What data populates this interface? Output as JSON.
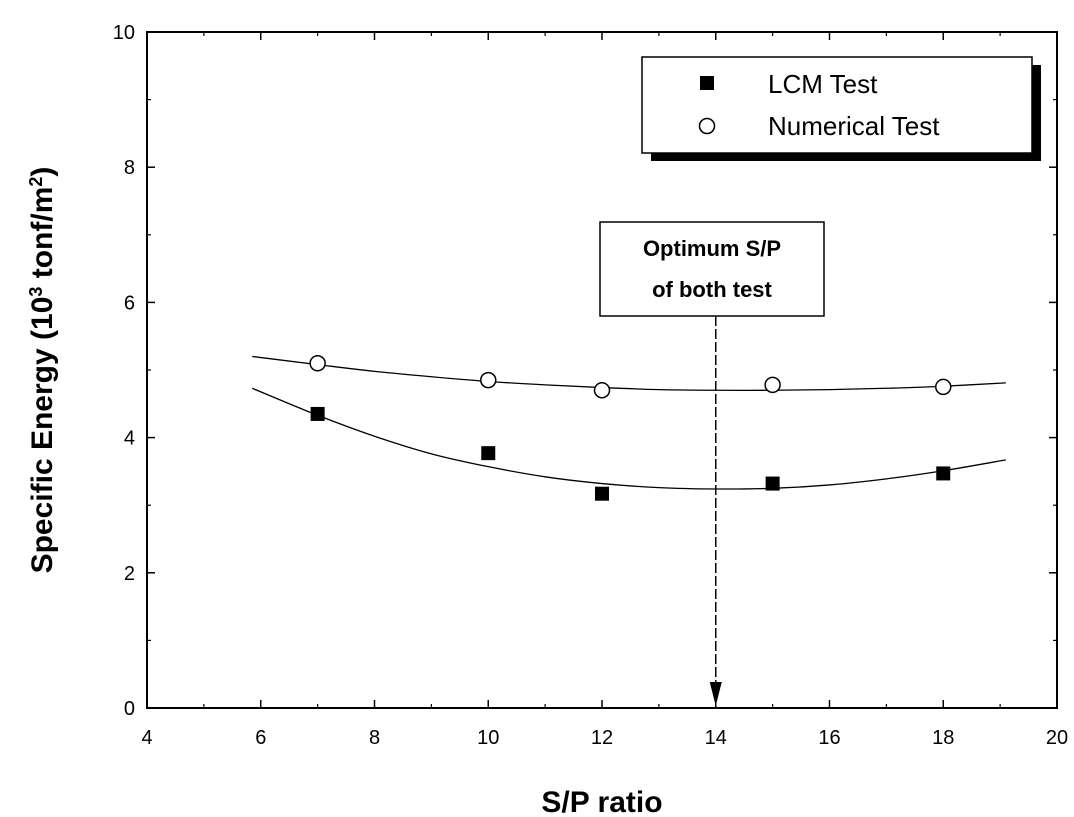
{
  "chart_data": {
    "type": "scatter",
    "xlabel": "S/P ratio",
    "ylabel": "Specific Energy (10³ tonf/m²)",
    "ylabel_parts": {
      "a": "Specific Energy (10",
      "sup1": "3",
      "b": " tonf/m",
      "sup2": "2",
      "c": ")"
    },
    "xlim": [
      4,
      20
    ],
    "ylim": [
      0,
      10
    ],
    "xticks": [
      4,
      6,
      8,
      10,
      12,
      14,
      16,
      18,
      20
    ],
    "yticks": [
      0,
      2,
      4,
      6,
      8,
      10
    ],
    "grid": false,
    "legend": "top-right",
    "series": [
      {
        "name": "LCM Test",
        "marker": "filled-square",
        "color": "#000000",
        "x": [
          7,
          10,
          12,
          15,
          18
        ],
        "y": [
          4.35,
          3.77,
          3.17,
          3.32,
          3.47
        ],
        "fit": {
          "x": [
            5.85,
            7,
            8,
            9,
            10,
            11,
            12,
            13,
            14,
            15,
            16,
            17,
            18,
            19.1
          ],
          "y": [
            4.73,
            4.33,
            4.02,
            3.76,
            3.57,
            3.42,
            3.32,
            3.26,
            3.24,
            3.25,
            3.3,
            3.39,
            3.51,
            3.67
          ]
        }
      },
      {
        "name": "Numerical Test",
        "marker": "open-circle",
        "color": "#000000",
        "x": [
          7,
          10,
          12,
          15,
          18
        ],
        "y": [
          5.1,
          4.85,
          4.7,
          4.78,
          4.75
        ],
        "fit": {
          "x": [
            5.85,
            7,
            8,
            9,
            10,
            11,
            12,
            13,
            14,
            15,
            16,
            17,
            18,
            19.1
          ],
          "y": [
            5.2,
            5.08,
            4.98,
            4.9,
            4.83,
            4.78,
            4.74,
            4.71,
            4.7,
            4.7,
            4.71,
            4.73,
            4.76,
            4.81
          ]
        }
      }
    ],
    "annotation": {
      "lines": [
        "Optimum S/P",
        "of both test"
      ],
      "arrow_x": 14
    }
  }
}
